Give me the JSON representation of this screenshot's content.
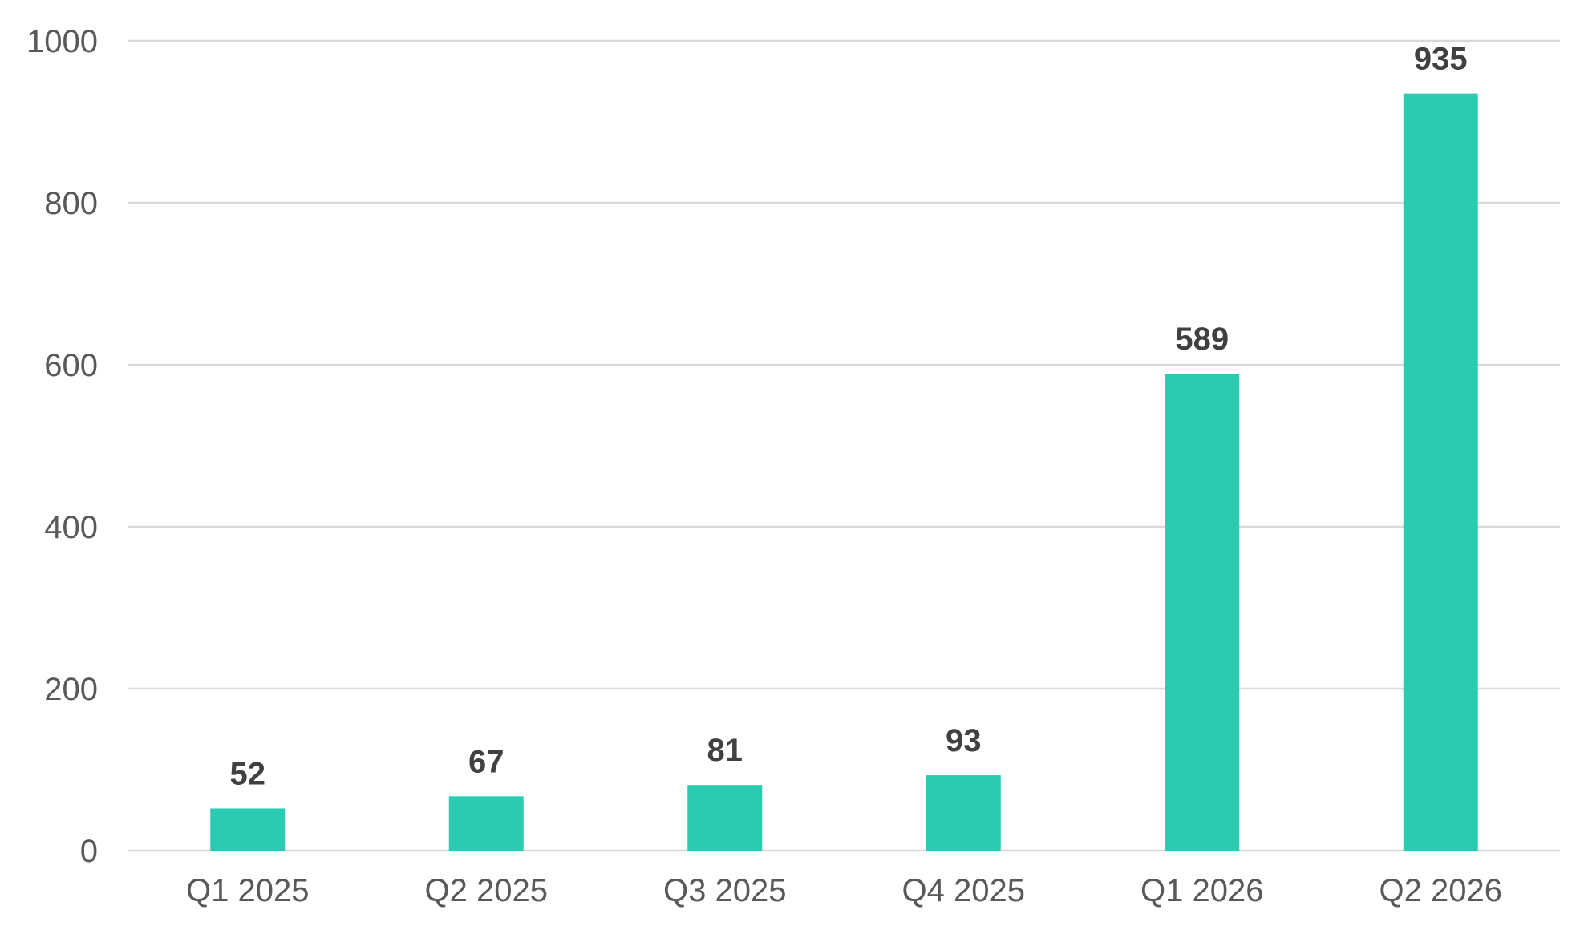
{
  "colors": {
    "bar": "#2ACBB0",
    "grid": "#D9D9D9",
    "tick_text": "#595959",
    "label_text": "#404040"
  },
  "chart_data": {
    "type": "bar",
    "title": "",
    "xlabel": "",
    "ylabel": "",
    "categories": [
      "Q1 2025",
      "Q2 2025",
      "Q3 2025",
      "Q4 2025",
      "Q1 2026",
      "Q2 2026"
    ],
    "values": [
      52,
      67,
      81,
      93,
      589,
      935
    ],
    "data_labels": [
      "52",
      "67",
      "81",
      "93",
      "589",
      "935"
    ],
    "ylim": [
      0,
      1000
    ],
    "yticks": [
      0,
      200,
      400,
      600,
      800,
      1000
    ],
    "grid": true,
    "legend": "none"
  }
}
